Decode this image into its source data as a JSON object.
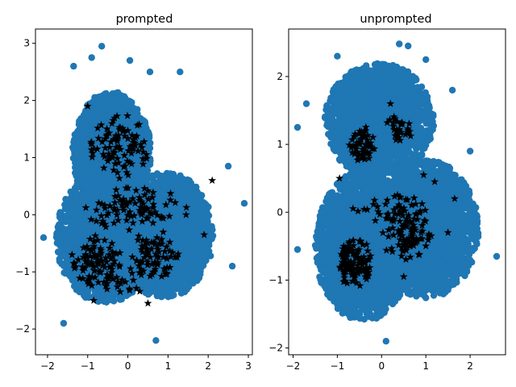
{
  "colors": {
    "blob": "#1f77b4",
    "stars": "#000000",
    "background": "#ffffff"
  },
  "chart_data": [
    {
      "type": "scatter",
      "title": "prompted",
      "xlabel": "",
      "ylabel": "",
      "xlim": [
        -2.3,
        3.1
      ],
      "ylim": [
        -2.45,
        3.25
      ],
      "xticks": [
        -2,
        -1,
        0,
        1,
        2,
        3
      ],
      "yticks": [
        -2,
        -1,
        0,
        1,
        2,
        3
      ],
      "grid": false,
      "series": [
        {
          "marker": "circle",
          "color": "#1f77b4",
          "regions": [
            {
              "cx": -0.4,
              "cy": 1.1,
              "rx": 1.15,
              "ry": 1.25,
              "n": 2600
            },
            {
              "cx": -0.55,
              "cy": -0.4,
              "rx": 1.45,
              "ry": 1.35,
              "n": 2600
            },
            {
              "cx": 0.9,
              "cy": -0.35,
              "rx": 1.45,
              "ry": 1.3,
              "n": 2600
            }
          ],
          "outliers": [
            [
              -0.65,
              2.95
            ],
            [
              0.05,
              2.7
            ],
            [
              -1.35,
              2.6
            ],
            [
              1.3,
              2.5
            ],
            [
              0.55,
              2.5
            ],
            [
              -2.1,
              -0.4
            ],
            [
              2.9,
              0.2
            ],
            [
              0.7,
              -2.2
            ],
            [
              -1.6,
              -1.9
            ],
            [
              2.6,
              -0.9
            ],
            [
              -0.9,
              2.75
            ],
            [
              2.5,
              0.85
            ]
          ]
        },
        {
          "marker": "star",
          "color": "#000000",
          "regions": [
            {
              "cx": -0.2,
              "cy": 1.2,
              "rx": 0.9,
              "ry": 0.7,
              "n": 95
            },
            {
              "cx": -0.8,
              "cy": -0.8,
              "rx": 0.75,
              "ry": 0.55,
              "n": 85
            },
            {
              "cx": 0.7,
              "cy": -0.7,
              "rx": 0.75,
              "ry": 0.55,
              "n": 70
            },
            {
              "cx": 0.2,
              "cy": 0.1,
              "rx": 1.6,
              "ry": 0.45,
              "n": 85
            },
            {
              "cx": -0.1,
              "cy": -1.1,
              "rx": 0.9,
              "ry": 0.35,
              "n": 25
            }
          ],
          "outliers": [
            [
              2.1,
              0.6
            ],
            [
              1.45,
              0.0
            ],
            [
              1.9,
              -0.35
            ],
            [
              -1.35,
              -0.85
            ],
            [
              -1.0,
              1.9
            ],
            [
              0.5,
              -1.55
            ],
            [
              -0.85,
              -1.5
            ],
            [
              0.05,
              0.05
            ]
          ]
        }
      ]
    },
    {
      "type": "scatter",
      "title": "unprompted",
      "xlabel": "",
      "ylabel": "",
      "xlim": [
        -2.1,
        2.8
      ],
      "ylim": [
        -2.1,
        2.7
      ],
      "xticks": [
        -2,
        -1,
        0,
        1,
        2
      ],
      "yticks": [
        -2,
        -1,
        0,
        1,
        2
      ],
      "grid": false,
      "series": [
        {
          "marker": "circle",
          "color": "#1f77b4",
          "regions": [
            {
              "cx": -0.05,
              "cy": 1.35,
              "rx": 1.45,
              "ry": 1.0,
              "n": 2600
            },
            {
              "cx": -0.4,
              "cy": -0.5,
              "rx": 1.3,
              "ry": 1.3,
              "n": 2600
            },
            {
              "cx": 1.0,
              "cy": -0.25,
              "rx": 1.4,
              "ry": 1.2,
              "n": 2600
            }
          ],
          "outliers": [
            [
              -1.9,
              1.25
            ],
            [
              0.4,
              2.48
            ],
            [
              -1.0,
              2.3
            ],
            [
              1.0,
              2.25
            ],
            [
              2.6,
              -0.65
            ],
            [
              -1.9,
              -0.55
            ],
            [
              0.1,
              -1.9
            ],
            [
              1.6,
              1.8
            ],
            [
              2.0,
              0.9
            ],
            [
              -1.7,
              1.6
            ],
            [
              0.6,
              2.45
            ]
          ]
        },
        {
          "marker": "star",
          "color": "#000000",
          "regions": [
            {
              "cx": -0.45,
              "cy": 1.0,
              "rx": 0.35,
              "ry": 0.35,
              "n": 55
            },
            {
              "cx": 0.4,
              "cy": 1.25,
              "rx": 0.35,
              "ry": 0.3,
              "n": 30
            },
            {
              "cx": -0.6,
              "cy": -0.75,
              "rx": 0.45,
              "ry": 0.45,
              "n": 120
            },
            {
              "cx": 0.55,
              "cy": -0.35,
              "rx": 0.7,
              "ry": 0.45,
              "n": 80
            },
            {
              "cx": 0.2,
              "cy": 0.05,
              "rx": 1.0,
              "ry": 0.25,
              "n": 45
            }
          ],
          "outliers": [
            [
              0.2,
              1.6
            ],
            [
              1.65,
              0.2
            ],
            [
              0.95,
              0.55
            ],
            [
              -0.95,
              0.5
            ],
            [
              1.5,
              -0.3
            ],
            [
              0.5,
              -0.95
            ],
            [
              1.2,
              0.45
            ]
          ]
        }
      ]
    }
  ]
}
